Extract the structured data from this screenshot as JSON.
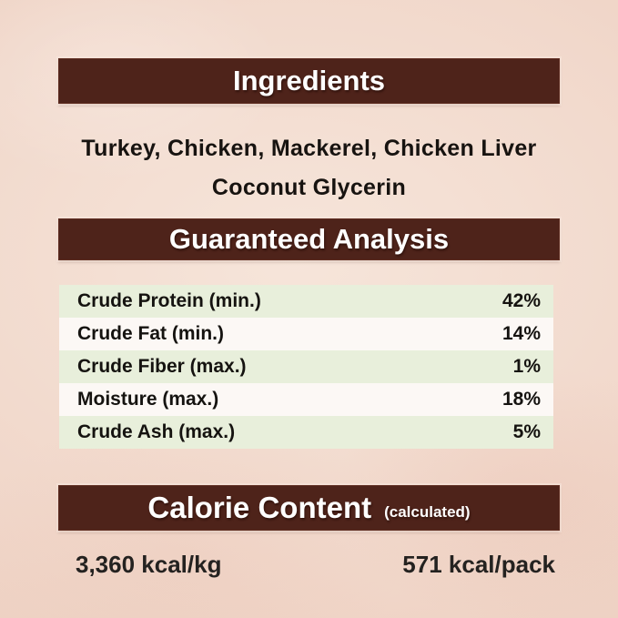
{
  "colors": {
    "background": "#f0d6c9",
    "header_bar": "#4e231a",
    "header_text": "#ffffff",
    "row_green": "#e8efdb",
    "row_white": "#fcf8f5",
    "body_text": "#171310"
  },
  "ingredients": {
    "title": "Ingredients",
    "lines": [
      "Turkey, Chicken, Mackerel, Chicken Liver",
      "Coconut Glycerin"
    ]
  },
  "guaranteed_analysis": {
    "title": "Guaranteed Analysis",
    "rows": [
      {
        "label": "Crude Protein (min.)",
        "value": "42%"
      },
      {
        "label": "Crude Fat (min.)",
        "value": "14%"
      },
      {
        "label": "Crude Fiber (max.)",
        "value": "1%"
      },
      {
        "label": "Moisture (max.)",
        "value": "18%"
      },
      {
        "label": "Crude Ash (max.)",
        "value": "5%"
      }
    ]
  },
  "calorie_content": {
    "title": "Calorie Content",
    "subtitle": "(calculated)",
    "per_kg": "3,360 kcal/kg",
    "per_pack": "571 kcal/pack"
  }
}
